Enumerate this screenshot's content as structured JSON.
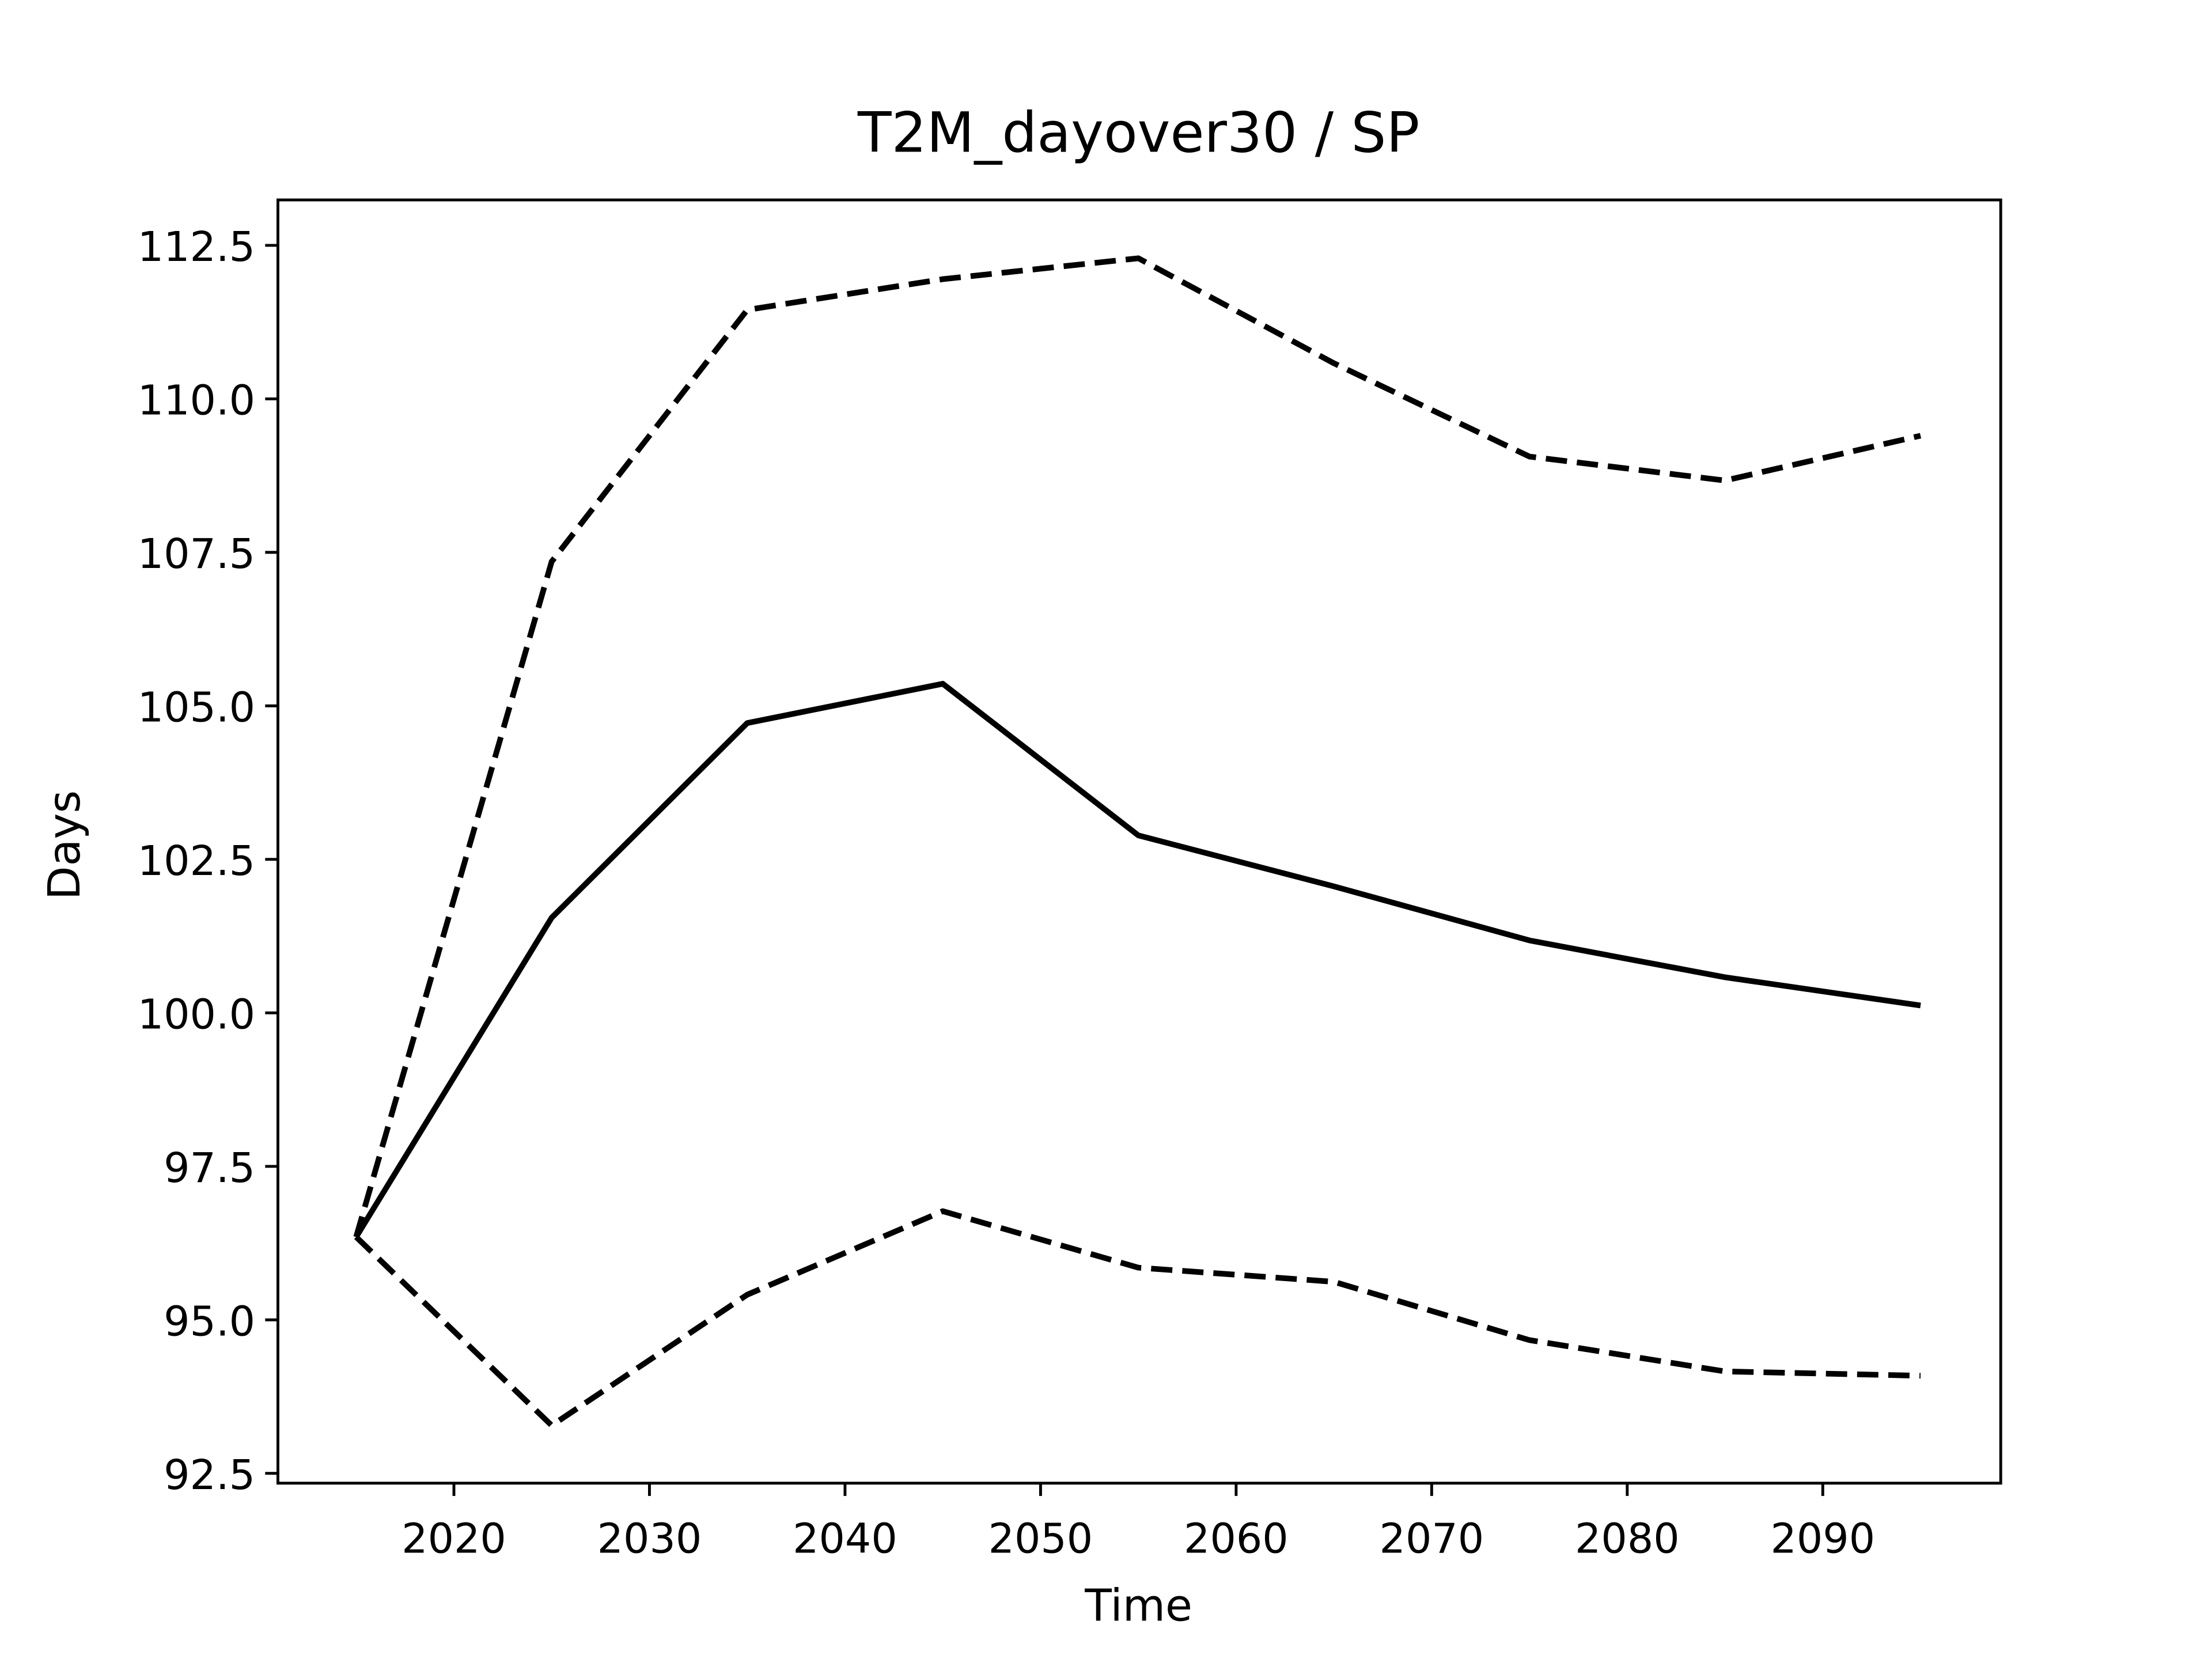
{
  "chart_data": {
    "type": "line",
    "title": "T2M_dayover30 / SP",
    "xlabel": "Time",
    "ylabel": "Days",
    "x": [
      2015,
      2025,
      2035,
      2045,
      2055,
      2065,
      2075,
      2085,
      2095
    ],
    "series": [
      {
        "color": "#000000",
        "dash": "solid",
        "values": [
          96.35,
          101.55,
          104.72,
          105.36,
          102.89,
          102.06,
          101.18,
          100.58,
          100.12
        ]
      },
      {
        "color": "#000000",
        "dash": "dashed",
        "values": [
          96.35,
          107.35,
          111.45,
          111.95,
          112.29,
          110.58,
          109.06,
          108.67,
          109.4
        ]
      },
      {
        "color": "#000000",
        "dash": "dashed",
        "values": [
          96.35,
          93.28,
          95.41,
          96.77,
          95.85,
          95.62,
          94.67,
          94.16,
          94.09
        ]
      }
    ],
    "xlim": [
      2011,
      2099.1
    ],
    "ylim": [
      92.34,
      113.24
    ],
    "xticks": [
      2020,
      2030,
      2040,
      2050,
      2060,
      2070,
      2080,
      2090
    ],
    "yticks": [
      92.5,
      {
        "value": 95,
        "label": "95.0"
      },
      97.5,
      {
        "value": 100,
        "label": "100.0"
      },
      102.5,
      {
        "value": 105,
        "label": "105.0"
      },
      107.5,
      {
        "value": 110,
        "label": "110.0"
      },
      112.5
    ],
    "grid": false
  }
}
